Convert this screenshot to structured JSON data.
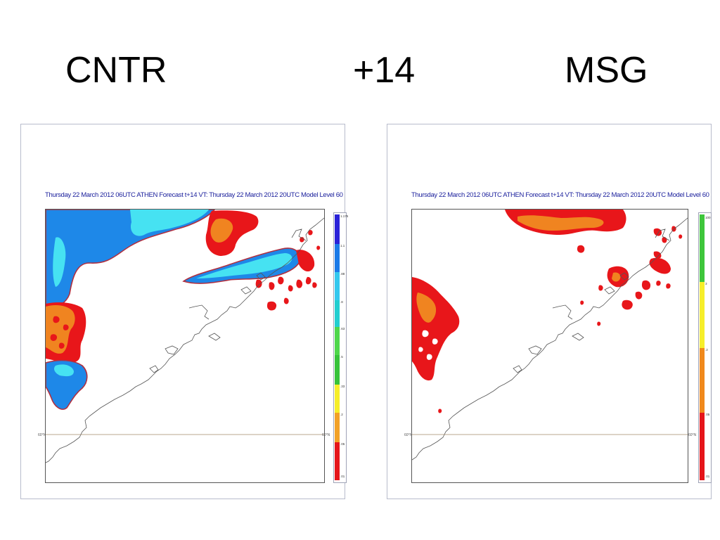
{
  "headings": {
    "left": "CNTR",
    "middle": "+14",
    "right": "MSG"
  },
  "panels": [
    {
      "title": "Thursday 22 March 2012 06UTC ATHEN  Forecast t+14 VT: Thursday 22 March 2012 20UTC Model Level 60",
      "lat_label_left": "60°N",
      "lat_label_right": "60°N",
      "colorbar": {
        "ticks": [
          "1.175",
          "1.1",
          ".88",
          ".8",
          ".63",
          ".5",
          ".33",
          ".2",
          ".05",
          ".01"
        ],
        "colors": [
          "#2a22d8",
          "#1a7ae8",
          "#34c8ee",
          "#22ced0",
          "#4fd64b",
          "#37c23a",
          "#f6ee2a",
          "#f2a127",
          "#e36b1f",
          "#e5151a"
        ]
      }
    },
    {
      "title": "Thursday 22 March 2012 06UTC ATHEN  Forecast t+14 VT: Thursday 22 March 2012 20UTC Model Level 60",
      "lat_label_left": "60°N",
      "lat_label_right": "60°N",
      "colorbar": {
        "ticks": [
          "100",
          "3",
          ".2",
          ".05",
          ".01"
        ],
        "colors": [
          "#3ec63b",
          "#f6ee2a",
          "#f0891c",
          "#e5151a"
        ]
      }
    }
  ],
  "colors": {
    "ice_blue": "#1e88e8",
    "light_cyan": "#46e2f2",
    "red": "#e8161a",
    "orange": "#f08420",
    "coast": "#555555",
    "title_blue": "#1a1f9c"
  }
}
